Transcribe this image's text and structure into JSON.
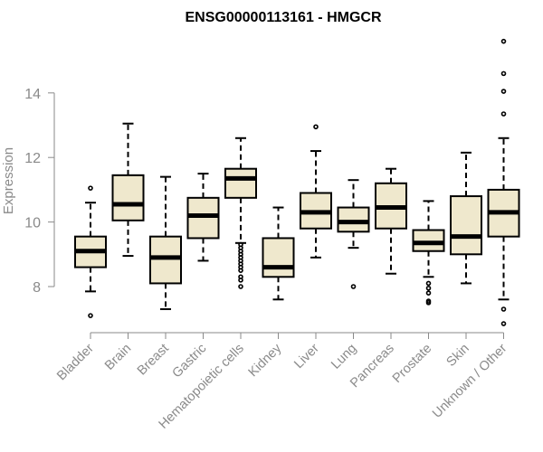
{
  "chart_data": {
    "type": "boxplot",
    "title": "ENSG00000113161 - HMGCR",
    "xlabel": "",
    "ylabel": "Expression",
    "ylim": [
      6.5,
      15.8
    ],
    "yticks": [
      8,
      10,
      12,
      14
    ],
    "grid": false,
    "legend": "none",
    "colors": {
      "box_fill": "#efe8cd",
      "stroke": "#000000",
      "axis": "#8a8a8a"
    },
    "categories": [
      "Bladder",
      "Brain",
      "Breast",
      "Gastric",
      "Hematopoietic cells",
      "Kidney",
      "Liver",
      "Lung",
      "Pancreas",
      "Prostate",
      "Skin",
      "Unknown / Other"
    ],
    "boxes": [
      {
        "q1": 8.6,
        "median": 9.1,
        "q3": 9.55,
        "whisker_low": 7.85,
        "whisker_high": 10.6,
        "outliers": [
          11.05,
          7.1
        ]
      },
      {
        "q1": 10.05,
        "median": 10.55,
        "q3": 11.45,
        "whisker_low": 8.95,
        "whisker_high": 13.05,
        "outliers": []
      },
      {
        "q1": 8.1,
        "median": 8.9,
        "q3": 9.55,
        "whisker_low": 7.3,
        "whisker_high": 11.4,
        "outliers": []
      },
      {
        "q1": 9.5,
        "median": 10.2,
        "q3": 10.75,
        "whisker_low": 8.8,
        "whisker_high": 11.5,
        "outliers": []
      },
      {
        "q1": 10.75,
        "median": 11.35,
        "q3": 11.65,
        "whisker_low": 9.35,
        "whisker_high": 12.6,
        "outliers": [
          9.3,
          9.2,
          9.1,
          9.0,
          8.9,
          8.8,
          8.7,
          8.6,
          8.5,
          8.3,
          8.2,
          8.0
        ]
      },
      {
        "q1": 8.3,
        "median": 8.6,
        "q3": 9.5,
        "whisker_low": 7.6,
        "whisker_high": 10.45,
        "outliers": []
      },
      {
        "q1": 9.8,
        "median": 10.3,
        "q3": 10.9,
        "whisker_low": 8.9,
        "whisker_high": 12.2,
        "outliers": [
          12.95
        ]
      },
      {
        "q1": 9.7,
        "median": 10.0,
        "q3": 10.45,
        "whisker_low": 9.2,
        "whisker_high": 11.3,
        "outliers": [
          8.0
        ]
      },
      {
        "q1": 9.8,
        "median": 10.45,
        "q3": 11.2,
        "whisker_low": 8.4,
        "whisker_high": 11.65,
        "outliers": []
      },
      {
        "q1": 9.1,
        "median": 9.35,
        "q3": 9.75,
        "whisker_low": 8.3,
        "whisker_high": 10.65,
        "outliers": [
          8.1,
          7.95,
          7.8,
          7.55,
          7.5
        ]
      },
      {
        "q1": 9.0,
        "median": 9.55,
        "q3": 10.8,
        "whisker_low": 8.1,
        "whisker_high": 12.15,
        "outliers": []
      },
      {
        "q1": 9.55,
        "median": 10.3,
        "q3": 11.0,
        "whisker_low": 7.6,
        "whisker_high": 12.6,
        "outliers": [
          13.35,
          14.05,
          14.6,
          15.6,
          7.3,
          6.85
        ]
      }
    ]
  }
}
